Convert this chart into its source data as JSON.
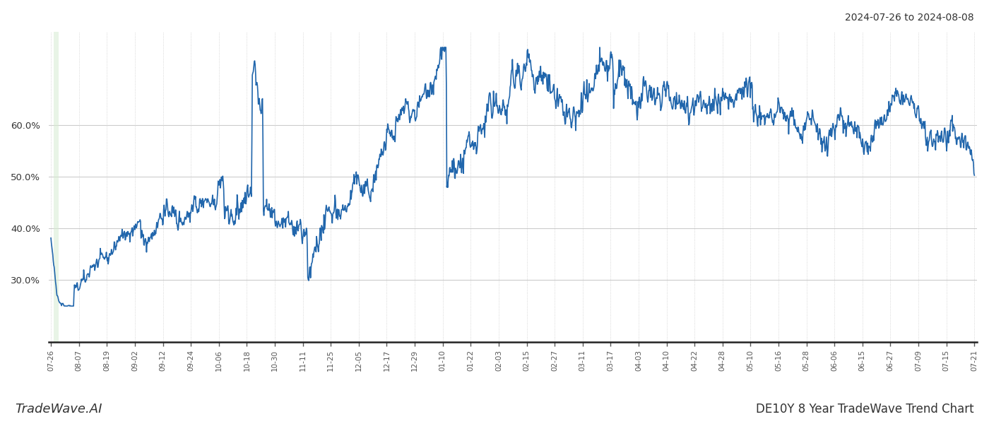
{
  "title_top_right": "2024-07-26 to 2024-08-08",
  "title_bottom_left": "TradeWave.AI",
  "title_bottom_right": "DE10Y 8 Year TradeWave Trend Chart",
  "line_color": "#2166ac",
  "line_width": 1.2,
  "highlight_color": "#d6ecd2",
  "highlight_alpha": 0.55,
  "background_color": "#ffffff",
  "grid_color": "#cccccc",
  "ylabel_values": [
    30.0,
    40.0,
    50.0,
    60.0
  ],
  "ylim": [
    18,
    78
  ],
  "x_tick_labels": [
    "07-26",
    "08-07",
    "08-19",
    "09-02",
    "09-12",
    "09-24",
    "10-06",
    "10-18",
    "10-30",
    "11-11",
    "11-25",
    "12-05",
    "12-17",
    "12-29",
    "01-10",
    "01-22",
    "02-03",
    "02-15",
    "02-27",
    "03-11",
    "03-17",
    "04-03",
    "04-10",
    "04-22",
    "04-28",
    "05-10",
    "05-16",
    "05-28",
    "06-06",
    "06-15",
    "06-27",
    "07-09",
    "07-15",
    "07-21"
  ]
}
